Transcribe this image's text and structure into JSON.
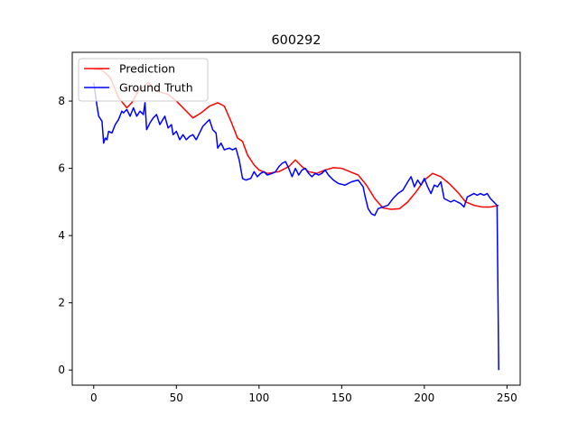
{
  "chart_data": {
    "type": "line",
    "title": "600292",
    "xlabel": "",
    "ylabel": "",
    "xlim": [
      -13,
      258
    ],
    "ylim": [
      -0.45,
      9.45
    ],
    "xticks": [
      0,
      50,
      100,
      150,
      200,
      250
    ],
    "yticks": [
      0,
      2,
      4,
      6,
      8
    ],
    "grid": false,
    "legend_position": "top-left",
    "series": [
      {
        "name": "Prediction",
        "color": "#ff0000",
        "points": [
          [
            0,
            8.95
          ],
          [
            5,
            8.93
          ],
          [
            10,
            8.7
          ],
          [
            15,
            8.1
          ],
          [
            20,
            7.8
          ],
          [
            23,
            7.95
          ],
          [
            27,
            8.3
          ],
          [
            33,
            8.55
          ],
          [
            38,
            8.3
          ],
          [
            45,
            8.2
          ],
          [
            50,
            8.0
          ],
          [
            55,
            7.75
          ],
          [
            60,
            7.5
          ],
          [
            65,
            7.65
          ],
          [
            70,
            7.85
          ],
          [
            75,
            7.95
          ],
          [
            79,
            7.85
          ],
          [
            83,
            7.4
          ],
          [
            87,
            6.9
          ],
          [
            90,
            6.8
          ],
          [
            93,
            6.4
          ],
          [
            97,
            6.1
          ],
          [
            100,
            5.95
          ],
          [
            105,
            5.85
          ],
          [
            112,
            5.9
          ],
          [
            118,
            6.05
          ],
          [
            122,
            6.25
          ],
          [
            126,
            6.05
          ],
          [
            130,
            5.9
          ],
          [
            135,
            5.85
          ],
          [
            140,
            5.95
          ],
          [
            145,
            6.02
          ],
          [
            150,
            6.0
          ],
          [
            155,
            5.9
          ],
          [
            160,
            5.8
          ],
          [
            165,
            5.5
          ],
          [
            170,
            5.1
          ],
          [
            175,
            4.82
          ],
          [
            180,
            4.78
          ],
          [
            185,
            4.8
          ],
          [
            190,
            5.0
          ],
          [
            195,
            5.3
          ],
          [
            200,
            5.65
          ],
          [
            205,
            5.85
          ],
          [
            210,
            5.75
          ],
          [
            215,
            5.55
          ],
          [
            220,
            5.3
          ],
          [
            225,
            5.0
          ],
          [
            230,
            4.9
          ],
          [
            235,
            4.85
          ],
          [
            240,
            4.85
          ],
          [
            245,
            4.9
          ]
        ]
      },
      {
        "name": "Ground Truth",
        "color": "#0000ff",
        "points": [
          [
            0,
            8.55
          ],
          [
            2,
            7.85
          ],
          [
            3,
            7.55
          ],
          [
            5,
            7.4
          ],
          [
            6,
            6.75
          ],
          [
            7,
            6.9
          ],
          [
            8,
            6.85
          ],
          [
            9,
            7.1
          ],
          [
            11,
            7.05
          ],
          [
            13,
            7.3
          ],
          [
            15,
            7.45
          ],
          [
            17,
            7.7
          ],
          [
            18,
            7.65
          ],
          [
            20,
            7.75
          ],
          [
            22,
            7.55
          ],
          [
            24,
            7.8
          ],
          [
            26,
            7.55
          ],
          [
            28,
            7.7
          ],
          [
            30,
            7.6
          ],
          [
            31,
            7.95
          ],
          [
            32,
            7.15
          ],
          [
            34,
            7.35
          ],
          [
            36,
            7.5
          ],
          [
            38,
            7.6
          ],
          [
            40,
            7.3
          ],
          [
            43,
            7.55
          ],
          [
            45,
            7.2
          ],
          [
            47,
            7.3
          ],
          [
            48,
            7.0
          ],
          [
            50,
            7.1
          ],
          [
            52,
            6.85
          ],
          [
            54,
            7.0
          ],
          [
            56,
            6.85
          ],
          [
            58,
            6.95
          ],
          [
            60,
            7.0
          ],
          [
            62,
            6.85
          ],
          [
            64,
            7.05
          ],
          [
            66,
            7.25
          ],
          [
            68,
            7.35
          ],
          [
            70,
            7.45
          ],
          [
            72,
            7.15
          ],
          [
            74,
            7.05
          ],
          [
            75,
            6.6
          ],
          [
            77,
            6.75
          ],
          [
            79,
            6.55
          ],
          [
            82,
            6.6
          ],
          [
            84,
            6.55
          ],
          [
            86,
            6.6
          ],
          [
            88,
            6.25
          ],
          [
            90,
            5.7
          ],
          [
            92,
            5.65
          ],
          [
            95,
            5.7
          ],
          [
            97,
            5.9
          ],
          [
            99,
            5.75
          ],
          [
            101,
            5.85
          ],
          [
            103,
            5.9
          ],
          [
            105,
            5.8
          ],
          [
            108,
            5.85
          ],
          [
            110,
            5.9
          ],
          [
            112,
            6.05
          ],
          [
            114,
            6.15
          ],
          [
            116,
            6.2
          ],
          [
            118,
            6.0
          ],
          [
            120,
            5.75
          ],
          [
            122,
            6.0
          ],
          [
            124,
            5.8
          ],
          [
            126,
            5.95
          ],
          [
            128,
            6.0
          ],
          [
            130,
            5.85
          ],
          [
            132,
            5.75
          ],
          [
            134,
            5.85
          ],
          [
            136,
            5.8
          ],
          [
            138,
            5.85
          ],
          [
            140,
            5.95
          ],
          [
            142,
            5.8
          ],
          [
            145,
            5.65
          ],
          [
            148,
            5.55
          ],
          [
            152,
            5.5
          ],
          [
            156,
            5.6
          ],
          [
            160,
            5.65
          ],
          [
            163,
            5.45
          ],
          [
            164,
            5.2
          ],
          [
            166,
            4.8
          ],
          [
            168,
            4.65
          ],
          [
            170,
            4.6
          ],
          [
            172,
            4.8
          ],
          [
            175,
            4.85
          ],
          [
            178,
            4.9
          ],
          [
            181,
            5.1
          ],
          [
            184,
            5.25
          ],
          [
            187,
            5.35
          ],
          [
            190,
            5.6
          ],
          [
            192,
            5.75
          ],
          [
            194,
            5.45
          ],
          [
            196,
            5.65
          ],
          [
            198,
            5.5
          ],
          [
            200,
            5.7
          ],
          [
            202,
            5.45
          ],
          [
            204,
            5.25
          ],
          [
            206,
            5.5
          ],
          [
            208,
            5.45
          ],
          [
            210,
            5.6
          ],
          [
            212,
            5.1
          ],
          [
            214,
            5.05
          ],
          [
            216,
            5.0
          ],
          [
            218,
            5.05
          ],
          [
            220,
            5.0
          ],
          [
            222,
            4.95
          ],
          [
            224,
            4.85
          ],
          [
            226,
            5.15
          ],
          [
            228,
            5.2
          ],
          [
            230,
            5.25
          ],
          [
            232,
            5.2
          ],
          [
            234,
            5.25
          ],
          [
            236,
            5.2
          ],
          [
            238,
            5.25
          ],
          [
            240,
            5.1
          ],
          [
            242,
            5.0
          ],
          [
            244,
            4.9
          ],
          [
            245,
            0.0
          ]
        ]
      }
    ]
  }
}
